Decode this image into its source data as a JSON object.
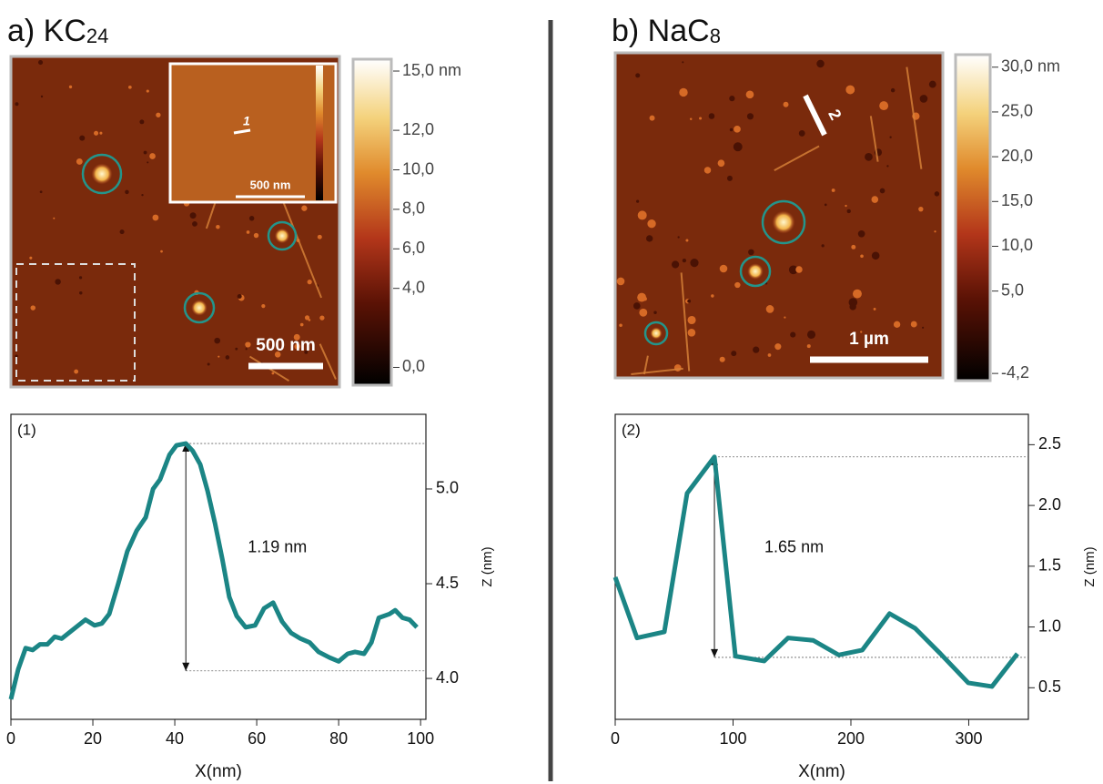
{
  "figure": {
    "panels": [
      {
        "title": "a) KC",
        "title_subscript": "24",
        "scale_bar": "500 nm",
        "inset_scale_bar": "500 nm",
        "profile_marker": "1",
        "colorbar": {
          "clim": [
            -0.9,
            15.6
          ],
          "ticks": [
            {
              "value": 15,
              "label": "15,0 nm"
            },
            {
              "value": 12,
              "label": "12,0"
            },
            {
              "value": 10,
              "label": "10,0"
            },
            {
              "value": 8,
              "label": "8,0"
            },
            {
              "value": 6,
              "label": "6,0"
            },
            {
              "value": 4,
              "label": "4,0"
            },
            {
              "value": 0,
              "label": "0,0"
            }
          ]
        }
      },
      {
        "title": "b) NaC",
        "title_subscript": "8",
        "scale_bar": "1 µm",
        "profile_marker": "2",
        "colorbar": {
          "clim": [
            -5,
            31.4
          ],
          "ticks": [
            {
              "value": 30,
              "label": "30,0 nm"
            },
            {
              "value": 25,
              "label": "25,0"
            },
            {
              "value": 20,
              "label": "20,0"
            },
            {
              "value": 15,
              "label": "15,0"
            },
            {
              "value": 10,
              "label": "10,0"
            },
            {
              "value": 5,
              "label": "5,0"
            },
            {
              "value": -4.2,
              "label": "-4,2"
            }
          ]
        }
      }
    ]
  },
  "chart_data": [
    {
      "type": "line",
      "panel_label": "(1)",
      "xlabel": "X(nm)",
      "ylabel": "Z (nm)",
      "x": [
        0,
        1.8,
        3.6,
        5.3,
        7.1,
        8.9,
        10.7,
        12.4,
        14.7,
        18.2,
        20.4,
        22.2,
        24,
        26.2,
        28.4,
        30.7,
        32.9,
        34.7,
        36.4,
        38.7,
        40.4,
        42.7,
        44.4,
        46.2,
        48,
        49.8,
        51.6,
        53.3,
        55.1,
        57.3,
        59.6,
        61.8,
        64,
        66.2,
        68.4,
        70.7,
        72.9,
        75.1,
        77.8,
        80,
        82.2,
        84,
        86.2,
        88,
        89.8,
        92.4,
        93.8,
        95.6,
        97.3,
        99.1
      ],
      "series": [
        {
          "color": "#1b8585",
          "values": [
            3.89,
            4.05,
            4.16,
            4.15,
            4.18,
            4.18,
            4.22,
            4.21,
            4.25,
            4.31,
            4.28,
            4.29,
            4.34,
            4.5,
            4.67,
            4.78,
            4.85,
            5.0,
            5.05,
            5.18,
            5.23,
            5.24,
            5.2,
            5.13,
            4.99,
            4.82,
            4.63,
            4.43,
            4.33,
            4.27,
            4.28,
            4.37,
            4.4,
            4.3,
            4.24,
            4.21,
            4.19,
            4.14,
            4.11,
            4.09,
            4.13,
            4.14,
            4.13,
            4.19,
            4.32,
            4.34,
            4.36,
            4.32,
            4.31,
            4.27
          ]
        }
      ],
      "xlim": [
        0,
        101.3
      ],
      "xticks": [
        0,
        20,
        40,
        60,
        80,
        100
      ],
      "ylim": [
        3.784,
        5.394
      ],
      "yticks": [
        {
          "value": 4,
          "label": "4.0"
        },
        4.5,
        {
          "value": 5,
          "label": "5.0"
        }
      ],
      "annotation": {
        "text": "1.19 nm",
        "x": 42.7,
        "top": 5.24,
        "bottom": 4.04
      }
    },
    {
      "type": "line",
      "panel_label": "(2)",
      "xlabel": "X(nm)",
      "ylabel": "Z (nm)",
      "x": [
        0,
        18.5,
        41.7,
        61,
        84.2,
        102,
        126.4,
        146.7,
        168,
        189.6,
        209.7,
        232.8,
        254.4,
        276,
        299.6,
        319.7,
        341.3
      ],
      "series": [
        {
          "color": "#1b8585",
          "values": [
            1.41,
            0.91,
            0.96,
            2.1,
            2.4,
            0.76,
            0.72,
            0.91,
            0.89,
            0.77,
            0.81,
            1.11,
            0.99,
            0.78,
            0.54,
            0.51,
            0.78
          ]
        }
      ],
      "xlim": [
        0,
        350.6
      ],
      "xticks": [
        0,
        100,
        200,
        300
      ],
      "ylim": [
        0.24,
        2.75
      ],
      "yticks": [
        0.5,
        {
          "value": 1,
          "label": "1.0"
        },
        1.5,
        {
          "value": 2,
          "label": "2.0"
        },
        2.5
      ],
      "annotation": {
        "text": "1.65 nm",
        "x": 84.2,
        "top": 2.4,
        "bottom": 0.75
      }
    }
  ]
}
